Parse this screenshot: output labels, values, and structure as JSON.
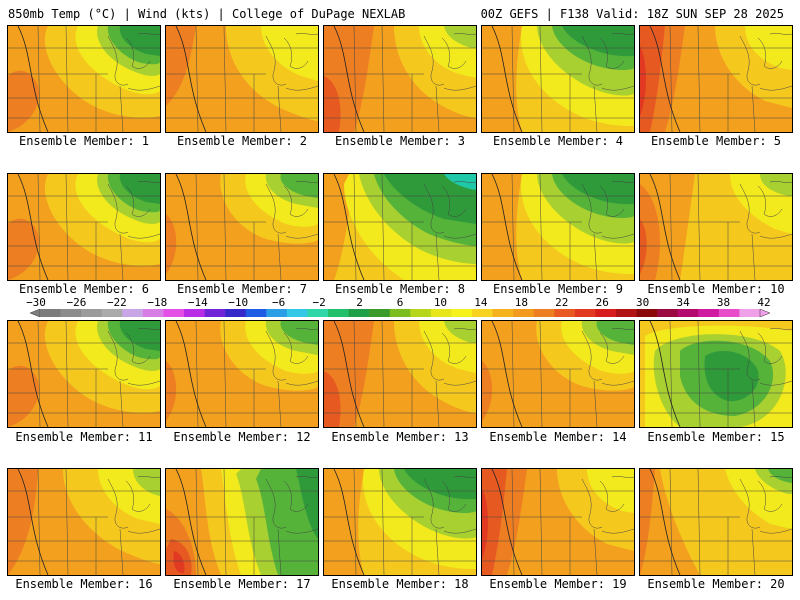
{
  "header": {
    "left_title": "850mb Temp (°C) | Wind (kts) | College of DuPage NEXLAB",
    "right_title": "00Z GEFS | F138 Valid: 18Z SUN SEP 28 2025"
  },
  "colorbar": {
    "labels": [
      "−30",
      "−26",
      "−22",
      "−18",
      "−14",
      "−10",
      "−6",
      "−2",
      "2",
      "6",
      "10",
      "14",
      "18",
      "22",
      "26",
      "30",
      "34",
      "38",
      "42"
    ],
    "colors": [
      "#7d7d7d",
      "#8c8c8c",
      "#9b9b9b",
      "#aaaaaa",
      "#c8a6e6",
      "#d67ee6",
      "#e44fe6",
      "#b82ee6",
      "#6f24d6",
      "#3527c9",
      "#1f5ce6",
      "#2a9ee6",
      "#35c8e6",
      "#2fd6a8",
      "#22c06a",
      "#1fa048",
      "#3a9a2a",
      "#7bbd1e",
      "#b5d61a",
      "#e6e61a",
      "#f6f21e",
      "#f7d21e",
      "#f5b21c",
      "#f29a1e",
      "#ee7e22",
      "#e85a22",
      "#e23a22",
      "#d61c1c",
      "#b01414",
      "#8a0a0a",
      "#9a0a40",
      "#b40a70",
      "#d01aa0",
      "#e84cc8",
      "#f0a0e8"
    ]
  },
  "map_colors": {
    "dark_green": "#2f9a3a",
    "green": "#55b33a",
    "light_green": "#a8d030",
    "yellow": "#f2ea1c",
    "gold": "#f5c81e",
    "orange": "#f2a01e",
    "dark_orange": "#ee7e22",
    "red": "#e65a22",
    "deep_red": "#e23a22",
    "teal": "#1fc8a8"
  },
  "panels": [
    {
      "label": "Ensemble Member: 1",
      "scenario": "ne_green_mild"
    },
    {
      "label": "Ensemble Member: 2",
      "scenario": "warm_uniform"
    },
    {
      "label": "Ensemble Member: 3",
      "scenario": "warm_west_red"
    },
    {
      "label": "Ensemble Member: 4",
      "scenario": "ne_green_wide"
    },
    {
      "label": "Ensemble Member: 5",
      "scenario": "hot_west"
    },
    {
      "label": "Ensemble Member: 6",
      "scenario": "ne_green_mild"
    },
    {
      "label": "Ensemble Member: 7",
      "scenario": "ne_green_small"
    },
    {
      "label": "Ensemble Member: 8",
      "scenario": "cool_ne_teal"
    },
    {
      "label": "Ensemble Member: 9",
      "scenario": "ne_green_wide"
    },
    {
      "label": "Ensemble Member: 10",
      "scenario": "hot_west_light"
    },
    {
      "label": "Ensemble Member: 11",
      "scenario": "ne_green_mild"
    },
    {
      "label": "Ensemble Member: 12",
      "scenario": "ne_green_small"
    },
    {
      "label": "Ensemble Member: 13",
      "scenario": "warm_west_red"
    },
    {
      "label": "Ensemble Member: 14",
      "scenario": "ne_green_small"
    },
    {
      "label": "Ensemble Member: 15",
      "scenario": "cool_center"
    },
    {
      "label": "Ensemble Member: 16",
      "scenario": "warm_uniform_ne"
    },
    {
      "label": "Ensemble Member: 17",
      "scenario": "green_center_redsw"
    },
    {
      "label": "Ensemble Member: 18",
      "scenario": "ne_green_wide"
    },
    {
      "label": "Ensemble Member: 19",
      "scenario": "hot_west"
    },
    {
      "label": "Ensemble Member: 20",
      "scenario": "ne_green_corner"
    }
  ]
}
